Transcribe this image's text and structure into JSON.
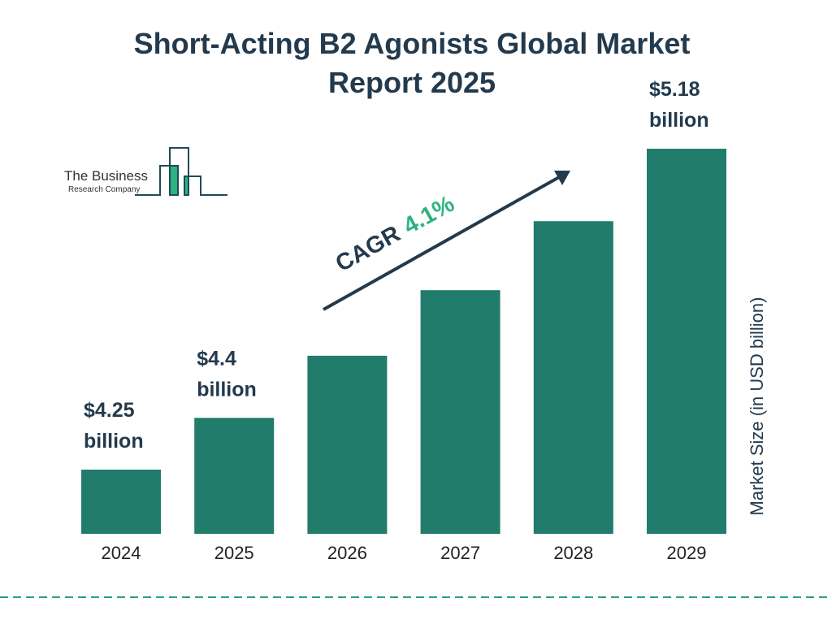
{
  "title": "Short-Acting B2 Agonists Global Market Report 2025",
  "logo": {
    "line1": "The Business",
    "line2": "Research Company"
  },
  "colors": {
    "bar": "#217c6b",
    "text": "#233a4d",
    "accent": "#2db37f",
    "dash": "#2a9d8f"
  },
  "chart_data": {
    "type": "bar",
    "title": "Short-Acting B2 Agonists Global Market Report 2025",
    "categories": [
      "2024",
      "2025",
      "2026",
      "2027",
      "2028",
      "2029"
    ],
    "values": [
      4.25,
      4.4,
      4.58,
      4.77,
      4.97,
      5.18
    ],
    "data_labels": [
      "$4.25 billion",
      "$4.4 billion",
      null,
      null,
      null,
      "$5.18 billion"
    ],
    "ylabel": "Market Size (in USD billion)",
    "xlabel": "",
    "annotation": {
      "text": "CAGR",
      "value": "4.1%"
    },
    "grid": false
  }
}
